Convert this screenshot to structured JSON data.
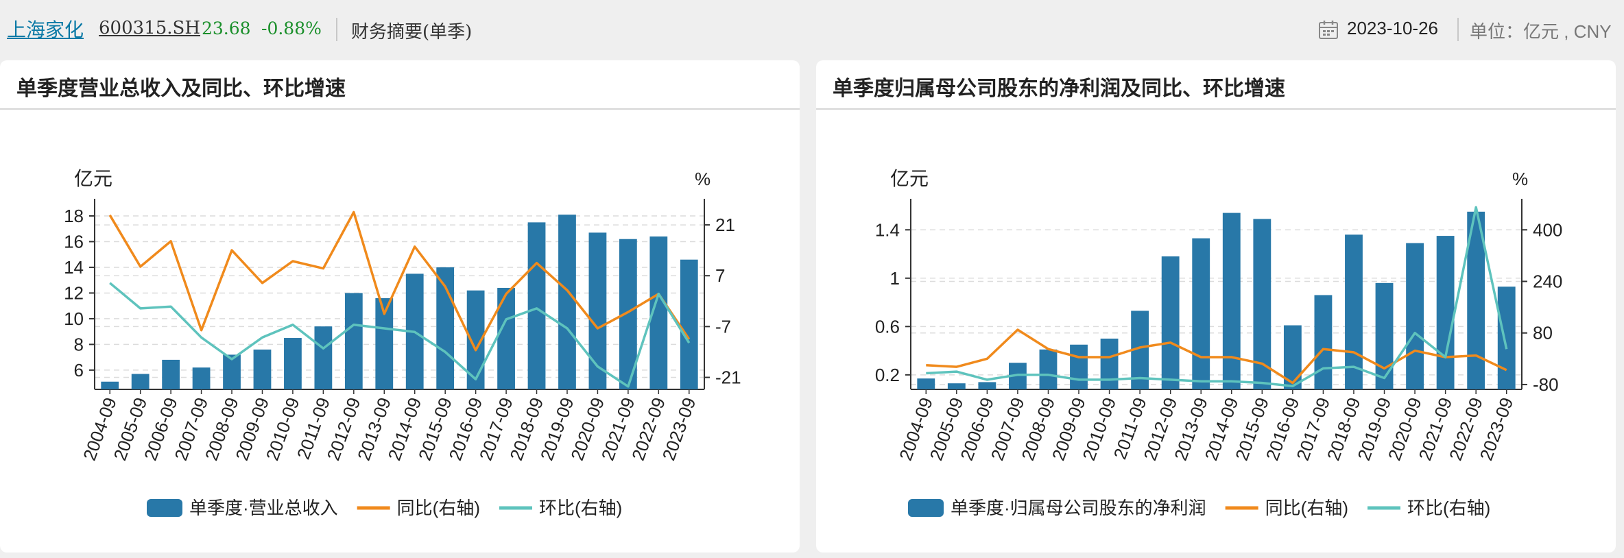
{
  "header": {
    "stock_name": "上海家化",
    "stock_code": "600315.SH",
    "price": "23.68",
    "change": "-0.88%",
    "page_title": "财务摘要(单季)",
    "date": "2023-10-26",
    "unit": "单位：亿元 , CNY"
  },
  "panels": [
    {
      "title": "单季度营业总收入及同比、环比增速"
    },
    {
      "title": "单季度归属母公司股东的净利润及同比、环比增速"
    }
  ],
  "colors": {
    "bar": "#2878a8",
    "yoy": "#f08a1c",
    "qoq": "#5ec3bd",
    "title_link": "#0c7aa6",
    "up_down": "#1a8f2a"
  },
  "icons": {
    "calendar": "calendar-icon"
  },
  "chart_data": [
    {
      "type": "bar",
      "title": "单季度营业总收入及同比、环比增速",
      "categories": [
        "2004-09",
        "2005-09",
        "2006-09",
        "2007-09",
        "2008-09",
        "2009-09",
        "2010-09",
        "2011-09",
        "2012-09",
        "2013-09",
        "2014-09",
        "2015-09",
        "2016-09",
        "2017-09",
        "2018-09",
        "2019-09",
        "2020-09",
        "2021-09",
        "2022-09",
        "2023-09"
      ],
      "ylabel_left": "亿元",
      "ylabel_right": "%",
      "ylim_left": [
        4.5,
        18.8
      ],
      "left_ticks": [
        6,
        8,
        10,
        12,
        14,
        16,
        18
      ],
      "ylim_right": [
        -24.3,
        26.3
      ],
      "right_ticks": [
        -21,
        -7,
        7,
        21
      ],
      "series": [
        {
          "name": "单季度·营业总收入",
          "type": "bar",
          "axis": "left",
          "values": [
            5.1,
            5.7,
            6.8,
            6.2,
            7.2,
            7.6,
            8.5,
            9.4,
            12.0,
            11.6,
            13.5,
            14.0,
            12.2,
            12.4,
            17.5,
            18.1,
            16.7,
            16.2,
            16.4,
            14.6
          ]
        },
        {
          "name": "同比(右轴)",
          "type": "line",
          "axis": "right",
          "values": [
            23.7,
            9.5,
            16.5,
            -8.0,
            14.0,
            5.0,
            11.0,
            9.0,
            24.5,
            -3.5,
            15.0,
            4.0,
            -13.5,
            2.0,
            10.5,
            3.0,
            -7.5,
            -3.0,
            2.0,
            -10.5
          ]
        },
        {
          "name": "环比(右轴)",
          "type": "line",
          "axis": "right",
          "values": [
            5.0,
            -2.0,
            -1.5,
            -10.0,
            -16.0,
            -10.0,
            -6.5,
            -13.0,
            -6.5,
            -7.5,
            -8.5,
            -14.0,
            -21.5,
            -5.0,
            -2.0,
            -7.5,
            -18.0,
            -23.5,
            2.0,
            -11.5
          ]
        }
      ],
      "legend": "bottom"
    },
    {
      "type": "bar",
      "title": "单季度归属母公司股东的净利润及同比、环比增速",
      "categories": [
        "2004-09",
        "2005-09",
        "2006-09",
        "2007-09",
        "2008-09",
        "2009-09",
        "2010-09",
        "2011-09",
        "2012-09",
        "2013-09",
        "2014-09",
        "2015-09",
        "2016-09",
        "2017-09",
        "2018-09",
        "2019-09",
        "2020-09",
        "2021-09",
        "2022-09",
        "2023-09"
      ],
      "ylabel_left": "亿元",
      "ylabel_right": "%",
      "ylim_left": [
        0.08,
        1.6
      ],
      "left_ticks": [
        0.2,
        0.6,
        1,
        1.4
      ],
      "ylim_right": [
        -95,
        475
      ],
      "right_ticks": [
        -80,
        80,
        240,
        400
      ],
      "series": [
        {
          "name": "单季度·归属母公司股东的净利润",
          "type": "bar",
          "axis": "left",
          "values": [
            0.17,
            0.13,
            0.14,
            0.3,
            0.41,
            0.45,
            0.5,
            0.73,
            1.18,
            1.33,
            1.54,
            1.49,
            0.61,
            0.86,
            1.36,
            0.96,
            1.29,
            1.35,
            1.55,
            0.93
          ]
        },
        {
          "name": "同比(右轴)",
          "type": "line",
          "axis": "right",
          "values": [
            -20,
            -25,
            0,
            90,
            30,
            5,
            5,
            35,
            50,
            5,
            5,
            -15,
            -75,
            30,
            20,
            -30,
            25,
            5,
            10,
            -35
          ]
        },
        {
          "name": "环比(右轴)",
          "type": "line",
          "axis": "right",
          "values": [
            -45,
            -40,
            -65,
            -50,
            -50,
            -65,
            -65,
            -60,
            -65,
            -70,
            -70,
            -75,
            -85,
            -30,
            -25,
            -60,
            80,
            5,
            470,
            30
          ]
        }
      ],
      "legend": "bottom"
    }
  ]
}
